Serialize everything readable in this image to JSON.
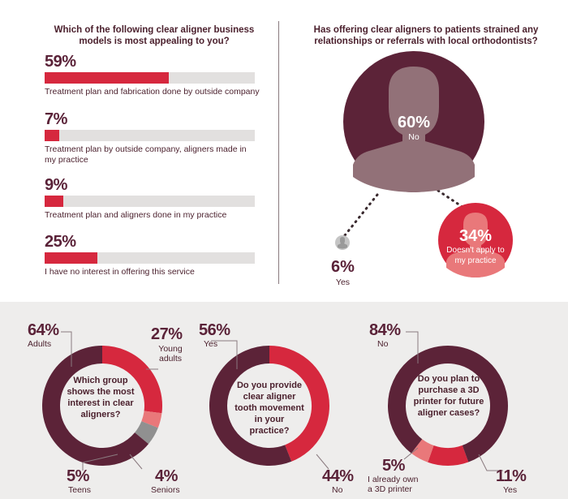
{
  "chart_data": [
    {
      "type": "bar",
      "title": "Which of the following clear aligner business models is most appealing to you?",
      "categories": [
        "Treatment plan and fabrication done by outside company",
        "Treatment plan by outside company, aligners made in my practice",
        "Treatment plan and aligners done in my practice",
        "I have no interest in offering this service"
      ],
      "values": [
        59,
        7,
        9,
        25
      ],
      "value_labels": [
        "59%",
        "7%",
        "9%",
        "25%"
      ],
      "xlim": [
        0,
        100
      ]
    },
    {
      "type": "pie",
      "title": "Has offering clear aligners to patients strained any relationships or referrals with local orthodontists?",
      "categories": [
        "No",
        "Doesn't apply to my practice",
        "Yes"
      ],
      "values": [
        60,
        34,
        6
      ],
      "value_labels": [
        "60%",
        "34%",
        "6%"
      ]
    },
    {
      "type": "pie",
      "title": "Which group shows the most interest in clear aligners?",
      "categories": [
        "Adults",
        "Young adults",
        "Seniors",
        "Teens"
      ],
      "values": [
        64,
        27,
        4,
        5
      ],
      "value_labels": [
        "64%",
        "27%",
        "4%",
        "5%"
      ]
    },
    {
      "type": "pie",
      "title": "Do you provide clear aligner tooth movement in your practice?",
      "categories": [
        "Yes",
        "No"
      ],
      "values": [
        56,
        44
      ],
      "value_labels": [
        "56%",
        "44%"
      ]
    },
    {
      "type": "pie",
      "title": "Do you plan to purchase a 3D printer for future aligner cases?",
      "categories": [
        "No",
        "Yes",
        "I already own a 3D printer"
      ],
      "values": [
        84,
        11,
        5
      ],
      "value_labels": [
        "84%",
        "11%",
        "5%"
      ]
    }
  ],
  "colors": {
    "dark": "#5c2338",
    "red": "#d6283e",
    "salmon": "#e9787a",
    "gray": "#909090",
    "track": "#e2e0df"
  },
  "icons": [
    "person-silhouette-icon"
  ]
}
